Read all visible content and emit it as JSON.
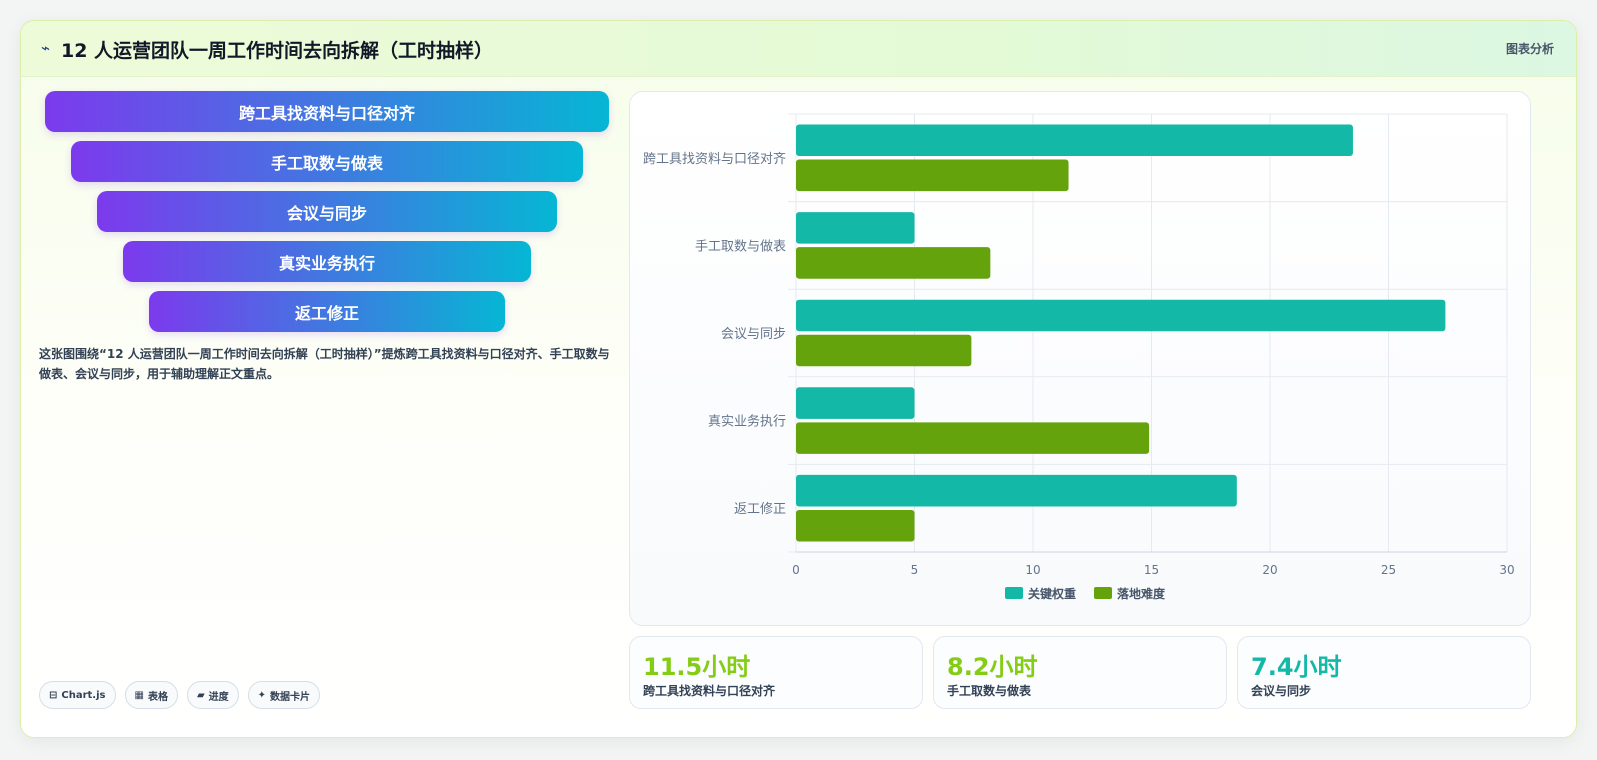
{
  "header": {
    "title_icon": "⌁",
    "title": "12 人运营团队一周工作时间去向拆解（工时抽样）",
    "tag": "图表分析"
  },
  "funnel": {
    "items": [
      "跨工具找资料与口径对齐",
      "手工取数与做表",
      "会议与同步",
      "真实业务执行",
      "返工修正"
    ]
  },
  "description": "这张图围绕“12 人运营团队一周工作时间去向拆解（工时抽样）”提炼跨工具找资料与口径对齐、手工取数与做表、会议与同步，用于辅助理解正文重点。",
  "chips": [
    {
      "icon": "chart-icon",
      "glyph": "⊟",
      "label": "Chart.js"
    },
    {
      "icon": "table-icon",
      "glyph": "▦",
      "label": "表格"
    },
    {
      "icon": "progress-icon",
      "glyph": "▰",
      "label": "进度"
    },
    {
      "icon": "card-icon",
      "glyph": "✦",
      "label": "数据卡片"
    }
  ],
  "chart_data": {
    "type": "bar",
    "orientation": "horizontal",
    "categories": [
      "跨工具找资料与口径对齐",
      "手工取数与做表",
      "会议与同步",
      "真实业务执行",
      "返工修正"
    ],
    "series": [
      {
        "name": "关键权重",
        "color": "#14b8a6",
        "values": [
          23.5,
          5,
          27.4,
          5,
          18.6
        ]
      },
      {
        "name": "落地难度",
        "color": "#65a30d",
        "values": [
          11.5,
          8.2,
          7.4,
          14.9,
          5
        ]
      }
    ],
    "xlim": [
      0,
      30
    ],
    "xticks": [
      0,
      5,
      10,
      15,
      20,
      25,
      30
    ],
    "grid": true,
    "legend": "bottom"
  },
  "stats": [
    {
      "value": "11.5小时",
      "label": "跨工具找资料与口径对齐",
      "color": "#84cc16"
    },
    {
      "value": "8.2小时",
      "label": "手工取数与做表",
      "color": "#84cc16"
    },
    {
      "value": "7.4小时",
      "label": "会议与同步",
      "color": "#14b8a6"
    }
  ]
}
